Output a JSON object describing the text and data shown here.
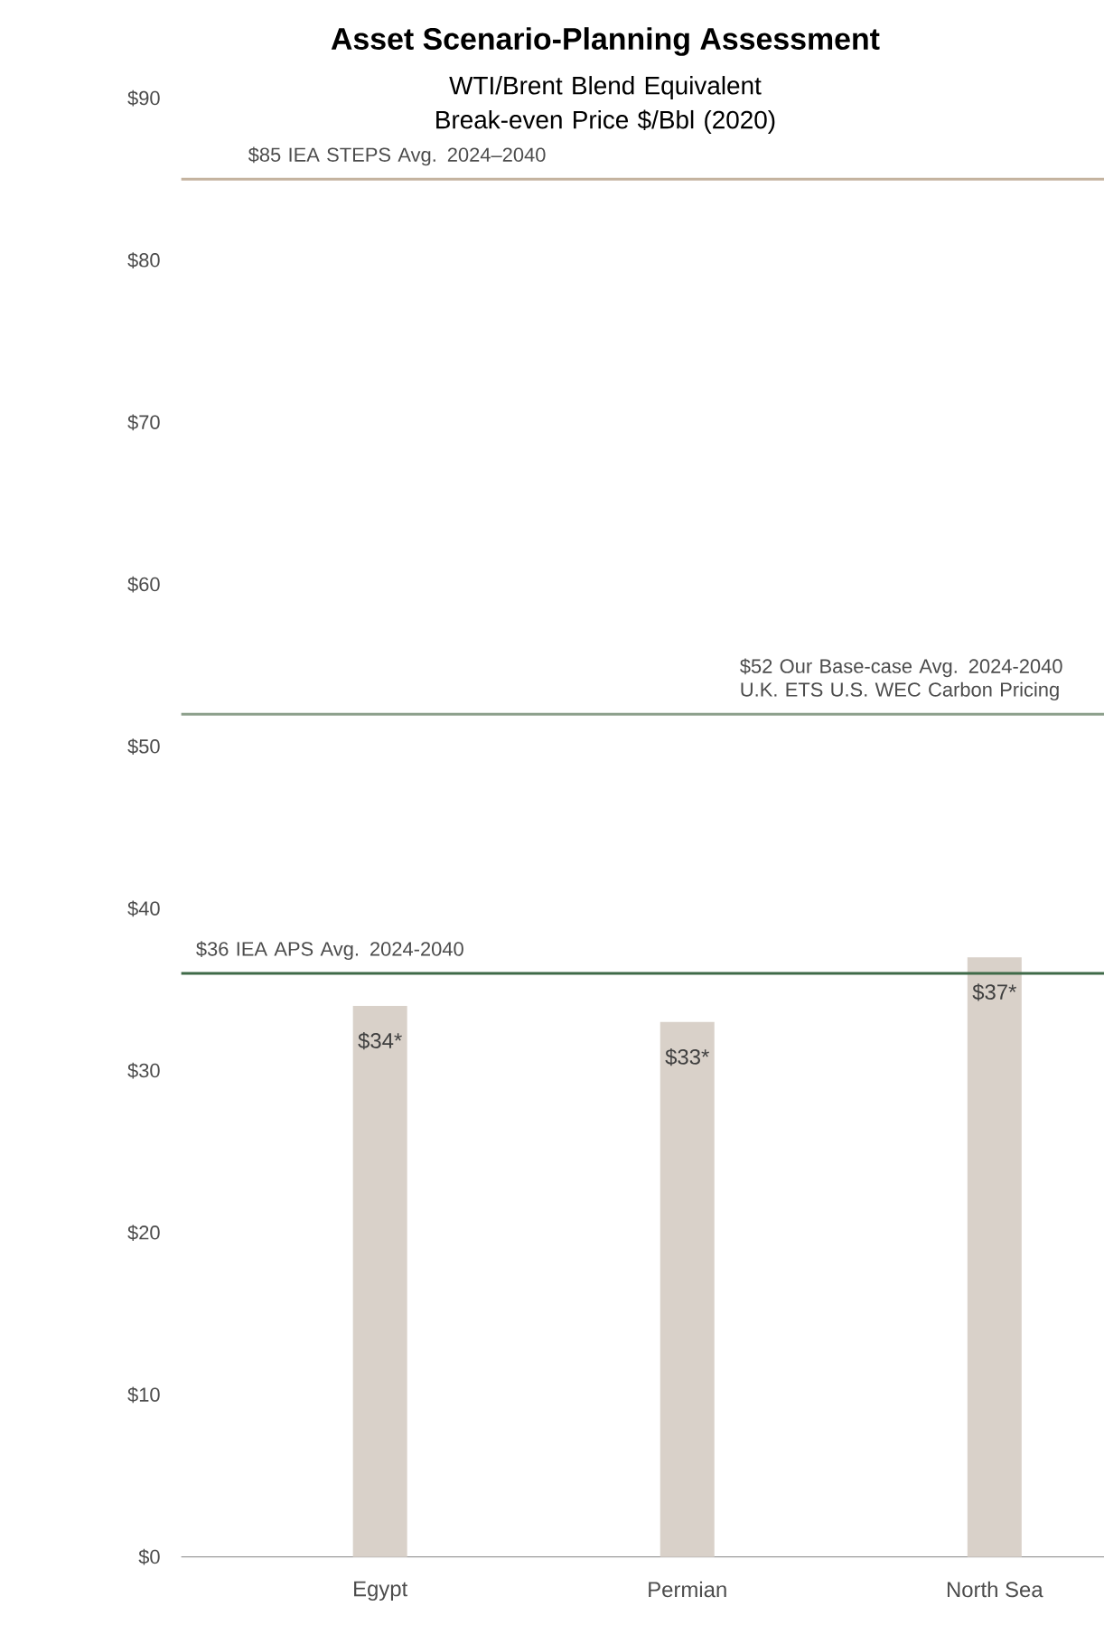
{
  "chart_data": {
    "type": "bar",
    "title": "Asset Scenario-Planning Assessment",
    "subtitle": "WTI/Brent Blend Equivalent Break-even Price $/Bbl (2020)",
    "categories": [
      "Egypt",
      "Permian",
      "North Sea"
    ],
    "values": [
      34,
      33,
      37
    ],
    "color": "#d9d1c9",
    "value_labels": [
      "$34*",
      "$33*",
      "$37*"
    ],
    "ylim": [
      0,
      90
    ],
    "yticks": [
      {
        "value": 0,
        "label": "$0"
      },
      {
        "value": 10,
        "label": "$10"
      },
      {
        "value": 20,
        "label": "$20"
      },
      {
        "value": 30,
        "label": "$30"
      },
      {
        "value": 40,
        "label": "$40"
      },
      {
        "value": 50,
        "label": "$50"
      },
      {
        "value": 60,
        "label": "$60"
      },
      {
        "value": 70,
        "label": "$70"
      },
      {
        "value": 80,
        "label": "$80"
      },
      {
        "value": 90,
        "label": "$90"
      }
    ],
    "ref_lines": [
      {
        "axis": "y",
        "value": 85,
        "label": "$85 IEA STEPS Avg. 2024–2040",
        "color": "#c4b39f"
      },
      {
        "axis": "y",
        "value": 52,
        "label": "$52 Our Base-case Avg. 2024-2040 U.K. ETS U.S. WEC Carbon Pricing",
        "color": "#8c9f8b"
      },
      {
        "axis": "y",
        "value": 36,
        "label": "$36 IEA APS Avg. 2024-2040",
        "color": "#3f6a48"
      }
    ],
    "grid": false
  }
}
